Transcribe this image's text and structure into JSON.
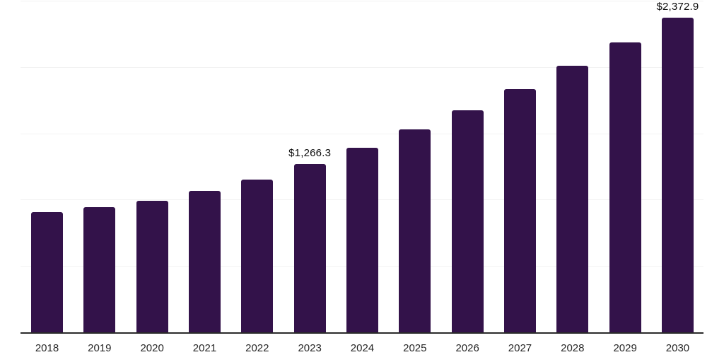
{
  "chart_data": {
    "type": "bar",
    "title": "",
    "subtitle": "",
    "xlabel": "",
    "ylabel": "",
    "legend_position": "none",
    "grid": "horizontal",
    "y_tick_labels_visible": false,
    "categories": [
      "2018",
      "2019",
      "2020",
      "2021",
      "2022",
      "2023",
      "2024",
      "2025",
      "2026",
      "2027",
      "2028",
      "2029",
      "2030"
    ],
    "values": [
      905,
      945,
      990,
      1065,
      1150,
      1266.3,
      1390,
      1530,
      1675,
      1835,
      2010,
      2185,
      2372.9
    ],
    "value_labels": {
      "2023": "$1,266.3",
      "2030": "$2,372.9"
    },
    "ylim": [
      0,
      2500
    ],
    "gridline_interval": 500,
    "colors": {
      "bar": "#33124A",
      "gridline": "#F2F2F2",
      "axis": "#2A2A2A",
      "value_label": "#0D0D0D",
      "tick_label": "#262626",
      "background": "#FFFFFF"
    }
  }
}
